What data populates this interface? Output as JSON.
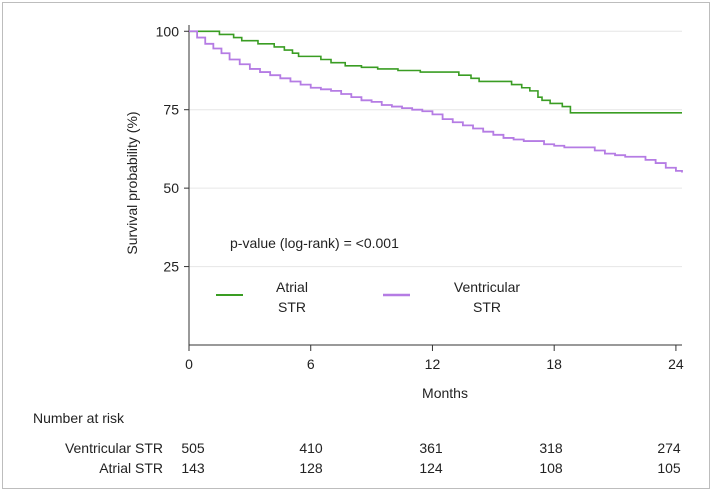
{
  "chart_data": {
    "type": "line",
    "title": "",
    "xlabel": "Months",
    "ylabel": "Survival probability (%)",
    "xlim": [
      0,
      24.3
    ],
    "ylim": [
      0,
      102
    ],
    "x_ticks": [
      0,
      6,
      12,
      18,
      24
    ],
    "y_ticks": [
      25,
      50,
      75,
      100
    ],
    "grid": "horizontal",
    "annotation": "p-value (log-rank) = <0.001",
    "legend": {
      "placement": "lower-left inside plot",
      "items": [
        "Atrial STR",
        "Ventricular STR"
      ]
    },
    "series": [
      {
        "name": "Atrial STR",
        "color": "#3a9d23",
        "x": [
          0,
          1.5,
          2.2,
          2.6,
          3.4,
          4.2,
          4.7,
          5.1,
          5.4,
          6.5,
          7.0,
          7.7,
          8.5,
          9.3,
          10.3,
          11.4,
          12.2,
          13.3,
          13.9,
          14.3,
          15.9,
          16.4,
          16.8,
          17.2,
          17.4,
          17.8,
          18.4,
          18.8,
          24.3
        ],
        "y": [
          100,
          99,
          98,
          97,
          96,
          95,
          94,
          93,
          92,
          91,
          90,
          89,
          88.5,
          88,
          87.5,
          87,
          87,
          86,
          85,
          84,
          83,
          82,
          81,
          79,
          78,
          77,
          76,
          74,
          74
        ]
      },
      {
        "name": "Ventricular STR",
        "color": "#b57ce4",
        "x": [
          0,
          0.4,
          0.8,
          1.2,
          1.6,
          2.0,
          2.5,
          3.0,
          3.5,
          4.0,
          4.5,
          5.0,
          5.5,
          6.0,
          6.5,
          7.0,
          7.5,
          8.0,
          8.5,
          9.0,
          9.5,
          10.0,
          10.5,
          11.0,
          11.5,
          12.0,
          12.5,
          13.0,
          13.5,
          14.0,
          14.5,
          15.0,
          15.5,
          16.0,
          16.5,
          17.0,
          17.5,
          18.0,
          18.5,
          19.0,
          19.5,
          20.0,
          20.5,
          21.0,
          21.5,
          22.0,
          22.5,
          23.0,
          23.5,
          24.0,
          24.3
        ],
        "y": [
          100,
          98,
          96,
          94.5,
          93,
          91,
          89.5,
          88,
          87,
          86,
          85,
          84,
          83,
          82,
          81.5,
          81,
          80,
          79,
          78,
          77.5,
          76.5,
          76,
          75.5,
          75,
          74.5,
          73.5,
          72,
          71,
          70,
          69,
          68,
          67,
          66,
          65.5,
          65,
          65,
          64,
          63.5,
          63,
          63,
          63,
          62,
          61,
          60.5,
          60,
          60,
          59,
          58,
          56.5,
          55.5,
          55
        ]
      }
    ]
  },
  "risk_table": {
    "header": "Number at risk",
    "rows": [
      {
        "label": "Ventricular STR",
        "values": [
          "505",
          "410",
          "361",
          "318",
          "274"
        ]
      },
      {
        "label": "Atrial STR",
        "values": [
          "143",
          "128",
          "124",
          "108",
          "105"
        ]
      }
    ]
  },
  "legend_labels": {
    "atrial_line1": "Atrial",
    "atrial_line2": "STR",
    "ventricular_line1": "Ventricular",
    "ventricular_line2": "STR"
  }
}
